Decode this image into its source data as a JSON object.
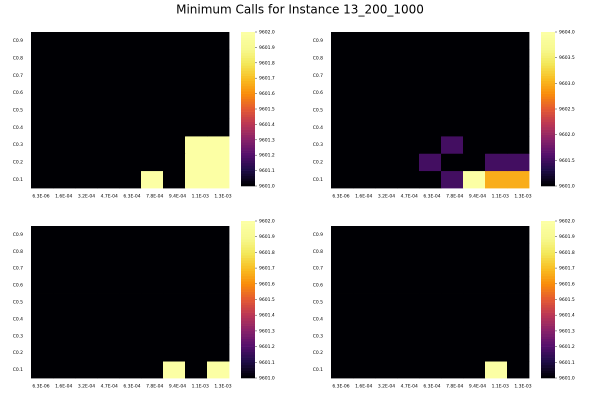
{
  "figure": {
    "title": "Minimum Calls for Instance 13_200_1000"
  },
  "colors": {
    "colormap": "inferno",
    "background": "#ffffff"
  },
  "chart_data": [
    {
      "type": "heatmap",
      "x_categories": [
        "6.3E-06",
        "1.6E-04",
        "3.2E-04",
        "4.7E-04",
        "6.3E-04",
        "7.8E-04",
        "9.4E-04",
        "1.1E-03",
        "1.3E-03"
      ],
      "y_categories": [
        "C0.1",
        "C0.2",
        "C0.3",
        "C0.4",
        "C0.5",
        "C0.6",
        "C0.7",
        "C0.8",
        "C0.9"
      ],
      "z": [
        [
          9601,
          9601,
          9601,
          9601,
          9601,
          9602,
          9601,
          9602,
          9602
        ],
        [
          9601,
          9601,
          9601,
          9601,
          9601,
          9601,
          9601,
          9602,
          9602
        ],
        [
          9601,
          9601,
          9601,
          9601,
          9601,
          9601,
          9601,
          9602,
          9602
        ],
        [
          9601,
          9601,
          9601,
          9601,
          9601,
          9601,
          9601,
          9601,
          9601
        ],
        [
          9601,
          9601,
          9601,
          9601,
          9601,
          9601,
          9601,
          9601,
          9601
        ],
        [
          9601,
          9601,
          9601,
          9601,
          9601,
          9601,
          9601,
          9601,
          9601
        ],
        [
          9601,
          9601,
          9601,
          9601,
          9601,
          9601,
          9601,
          9601,
          9601
        ],
        [
          9601,
          9601,
          9601,
          9601,
          9601,
          9601,
          9601,
          9601,
          9601
        ],
        [
          9601,
          9601,
          9601,
          9601,
          9601,
          9601,
          9601,
          9601,
          9601
        ]
      ],
      "clim": [
        9601.0,
        9602.0
      ],
      "colorbar_ticks": [
        "9601.0",
        "9601.1",
        "9601.2",
        "9601.3",
        "9601.4",
        "9601.5",
        "9601.6",
        "9601.7",
        "9601.8",
        "9601.9",
        "9602.0"
      ],
      "colormap": "inferno",
      "grid": false
    },
    {
      "type": "heatmap",
      "x_categories": [
        "6.3E-06",
        "1.6E-04",
        "3.2E-04",
        "4.7E-04",
        "6.3E-04",
        "7.8E-04",
        "9.4E-04",
        "1.1E-03",
        "1.3E-03"
      ],
      "y_categories": [
        "C0.1",
        "C0.2",
        "C0.3",
        "C0.4",
        "C0.5",
        "C0.6",
        "C0.7",
        "C0.8",
        "C0.9"
      ],
      "z": [
        [
          9601,
          9601,
          9601,
          9601,
          9601,
          9601.5,
          9604,
          9603,
          9603
        ],
        [
          9601,
          9601,
          9601,
          9601,
          9601.5,
          9601,
          9601,
          9601.5,
          9601.5
        ],
        [
          9601,
          9601,
          9601,
          9601,
          9601,
          9601.5,
          9601,
          9601,
          9601
        ],
        [
          9601,
          9601,
          9601,
          9601,
          9601,
          9601,
          9601,
          9601,
          9601
        ],
        [
          9601,
          9601,
          9601,
          9601,
          9601,
          9601,
          9601,
          9601,
          9601
        ],
        [
          9601,
          9601,
          9601,
          9601,
          9601,
          9601,
          9601,
          9601,
          9601
        ],
        [
          9601,
          9601,
          9601,
          9601,
          9601,
          9601,
          9601,
          9601,
          9601
        ],
        [
          9601,
          9601,
          9601,
          9601,
          9601,
          9601,
          9601,
          9601,
          9601
        ],
        [
          9601,
          9601,
          9601,
          9601,
          9601,
          9601,
          9601,
          9601,
          9601
        ]
      ],
      "clim": [
        9601.0,
        9604.0
      ],
      "colorbar_ticks": [
        "9601.0",
        "9601.5",
        "9602.0",
        "9602.5",
        "9603.0",
        "9603.5",
        "9604.0"
      ],
      "colormap": "inferno",
      "grid": false
    },
    {
      "type": "heatmap",
      "x_categories": [
        "6.3E-06",
        "1.6E-04",
        "3.2E-04",
        "4.7E-04",
        "6.3E-04",
        "7.8E-04",
        "9.4E-04",
        "1.1E-03",
        "1.3E-03"
      ],
      "y_categories": [
        "C0.1",
        "C0.2",
        "C0.3",
        "C0.4",
        "C0.5",
        "C0.6",
        "C0.7",
        "C0.8",
        "C0.9"
      ],
      "z": [
        [
          9601,
          9601,
          9601,
          9601,
          9601,
          9601,
          9602,
          9601,
          9602
        ],
        [
          9601,
          9601,
          9601,
          9601,
          9601,
          9601,
          9601,
          9601,
          9601
        ],
        [
          9601,
          9601,
          9601,
          9601,
          9601,
          9601,
          9601,
          9601,
          9601
        ],
        [
          9601,
          9601,
          9601,
          9601,
          9601,
          9601,
          9601,
          9601,
          9601
        ],
        [
          9601,
          9601,
          9601,
          9601,
          9601,
          9601,
          9601,
          9601,
          9601
        ],
        [
          9601,
          9601,
          9601,
          9601,
          9601,
          9601,
          9601,
          9601,
          9601
        ],
        [
          9601,
          9601,
          9601,
          9601,
          9601,
          9601,
          9601,
          9601,
          9601
        ],
        [
          9601,
          9601,
          9601,
          9601,
          9601,
          9601,
          9601,
          9601,
          9601
        ],
        [
          9601,
          9601,
          9601,
          9601,
          9601,
          9601,
          9601,
          9601,
          9601
        ]
      ],
      "clim": [
        9601.0,
        9602.0
      ],
      "colorbar_ticks": [
        "9601.0",
        "9601.1",
        "9601.2",
        "9601.3",
        "9601.4",
        "9601.5",
        "9601.6",
        "9601.7",
        "9601.8",
        "9601.9",
        "9602.0"
      ],
      "colormap": "inferno",
      "grid": false
    },
    {
      "type": "heatmap",
      "x_categories": [
        "6.3E-06",
        "1.6E-04",
        "3.2E-04",
        "4.7E-04",
        "6.3E-04",
        "7.8E-04",
        "9.4E-04",
        "1.1E-03",
        "1.3E-03"
      ],
      "y_categories": [
        "C0.1",
        "C0.2",
        "C0.3",
        "C0.4",
        "C0.5",
        "C0.6",
        "C0.7",
        "C0.8",
        "C0.9"
      ],
      "z": [
        [
          9601,
          9601,
          9601,
          9601,
          9601,
          9601,
          9601,
          9602,
          9601
        ],
        [
          9601,
          9601,
          9601,
          9601,
          9601,
          9601,
          9601,
          9601,
          9601
        ],
        [
          9601,
          9601,
          9601,
          9601,
          9601,
          9601,
          9601,
          9601,
          9601
        ],
        [
          9601,
          9601,
          9601,
          9601,
          9601,
          9601,
          9601,
          9601,
          9601
        ],
        [
          9601,
          9601,
          9601,
          9601,
          9601,
          9601,
          9601,
          9601,
          9601
        ],
        [
          9601,
          9601,
          9601,
          9601,
          9601,
          9601,
          9601,
          9601,
          9601
        ],
        [
          9601,
          9601,
          9601,
          9601,
          9601,
          9601,
          9601,
          9601,
          9601
        ],
        [
          9601,
          9601,
          9601,
          9601,
          9601,
          9601,
          9601,
          9601,
          9601
        ],
        [
          9601,
          9601,
          9601,
          9601,
          9601,
          9601,
          9601,
          9601,
          9601
        ]
      ],
      "clim": [
        9601.0,
        9602.0
      ],
      "colorbar_ticks": [
        "9601.0",
        "9601.1",
        "9601.2",
        "9601.3",
        "9601.4",
        "9601.5",
        "9601.6",
        "9601.7",
        "9601.8",
        "9601.9",
        "9602.0"
      ],
      "colormap": "inferno",
      "grid": false
    }
  ]
}
